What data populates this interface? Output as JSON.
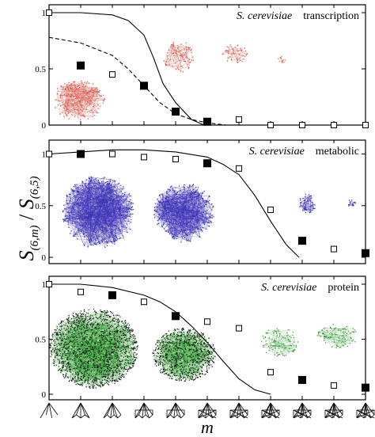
{
  "figure": {
    "ylabel_main": "S",
    "ylabel_main_sub": "(6,m)",
    "ylabel_sep": " / ",
    "ylabel_den": "S",
    "ylabel_den_sub": "(6,5)",
    "xlabel": "m"
  },
  "colors": {
    "axis": "#000000",
    "transcription_net": "#d9574a",
    "metabolic_net": "#3a2fb5",
    "protein_net": "#2a9c2a",
    "protein_dark": "#0d1a0d"
  },
  "chart_data": [
    {
      "type": "scatter",
      "organism": "S. cerevisiae",
      "network": "transcription",
      "xlim": [
        1,
        11
      ],
      "ylim": [
        0,
        1.0
      ],
      "yticks": [
        "0",
        "0.5",
        "1"
      ],
      "series": [
        {
          "marker": "open-square",
          "x": [
            1,
            3,
            7,
            8,
            9,
            10,
            11
          ],
          "y": [
            1.0,
            0.45,
            0.05,
            0.0,
            0.0,
            0.0,
            0.0
          ]
        },
        {
          "marker": "filled-square",
          "x": [
            2,
            4,
            5,
            6
          ],
          "y": [
            0.53,
            0.35,
            0.12,
            0.03
          ]
        },
        {
          "line": "solid",
          "x": [
            1,
            2,
            3,
            3.5,
            4,
            4.3,
            4.6,
            5,
            5.5,
            5.9
          ],
          "y": [
            1.0,
            1.0,
            0.98,
            0.93,
            0.8,
            0.6,
            0.37,
            0.2,
            0.05,
            0.0
          ]
        },
        {
          "line": "dashed",
          "x": [
            1,
            2,
            3,
            3.5,
            4,
            4.5,
            5,
            5.5,
            6,
            6.6
          ],
          "y": [
            0.78,
            0.73,
            0.62,
            0.5,
            0.35,
            0.2,
            0.1,
            0.05,
            0.02,
            0.0
          ]
        }
      ]
    },
    {
      "type": "scatter",
      "organism": "S. cerevisiae",
      "network": "metabolic",
      "xlim": [
        1,
        11
      ],
      "ylim": [
        0,
        1.05
      ],
      "yticks": [
        "0",
        "0.5",
        "1"
      ],
      "series": [
        {
          "marker": "open-square",
          "x": [
            1,
            3,
            4,
            5,
            7,
            8,
            10
          ],
          "y": [
            1.0,
            1.0,
            0.97,
            0.95,
            0.86,
            0.46,
            0.08
          ]
        },
        {
          "marker": "filled-square",
          "x": [
            2,
            6,
            9,
            11
          ],
          "y": [
            1.0,
            0.91,
            0.16,
            0.04
          ]
        },
        {
          "line": "solid",
          "x": [
            1,
            2,
            3,
            4,
            5,
            6,
            6.5,
            7,
            7.5,
            8,
            8.5,
            8.9
          ],
          "y": [
            1.0,
            1.02,
            1.04,
            1.04,
            1.02,
            0.97,
            0.9,
            0.8,
            0.6,
            0.35,
            0.12,
            0.0
          ]
        }
      ]
    },
    {
      "type": "scatter",
      "organism": "S. cerevisiae",
      "network": "protein",
      "xlim": [
        1,
        11
      ],
      "ylim": [
        0,
        1.0
      ],
      "yticks": [
        "0",
        "0.5",
        "1"
      ],
      "series": [
        {
          "marker": "open-square",
          "x": [
            1,
            2,
            4,
            6,
            7,
            8,
            10
          ],
          "y": [
            1.0,
            0.93,
            0.84,
            0.66,
            0.6,
            0.2,
            0.08
          ]
        },
        {
          "marker": "filled-square",
          "x": [
            3,
            5,
            9,
            11
          ],
          "y": [
            0.9,
            0.71,
            0.13,
            0.06
          ]
        },
        {
          "line": "solid",
          "x": [
            1,
            2,
            3,
            4,
            4.5,
            5,
            5.5,
            6,
            6.5,
            7,
            7.5,
            8
          ],
          "y": [
            1.0,
            1.0,
            0.97,
            0.9,
            0.84,
            0.75,
            0.62,
            0.47,
            0.3,
            0.14,
            0.04,
            0.0
          ]
        }
      ]
    }
  ],
  "panels": [
    {
      "label_organism": "S. cerevisiae",
      "label_network": "transcription"
    },
    {
      "label_organism": "S. cerevisiae",
      "label_network": "metabolic"
    },
    {
      "label_organism": "S. cerevisiae",
      "label_network": "protein"
    }
  ],
  "subgraph_icons": [
    "star-subgraph-icon",
    "fan-subgraph-icon",
    "fan-subgraph-icon",
    "pyramid-subgraph-icon",
    "pyramid-subgraph-icon",
    "diamond-subgraph-icon",
    "diamond-subgraph-icon",
    "polyhedron-subgraph-icon",
    "polyhedron-subgraph-icon",
    "polyhedron-subgraph-icon",
    "complete-subgraph-icon"
  ]
}
